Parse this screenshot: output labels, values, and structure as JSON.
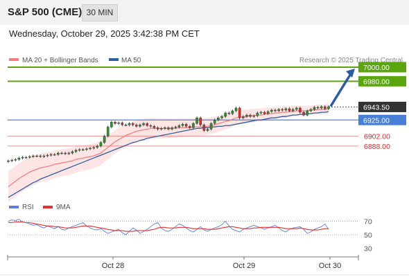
{
  "header": {
    "title": "S&P 500 (CME)",
    "timeframe_label": "30 MIN"
  },
  "datetime": "Wednesday, October 29, 2025 3:42:38 PM CET",
  "legend": {
    "items": [
      {
        "label": "MA 20 + Bollinger Bands",
        "color": "#f08080"
      },
      {
        "label": "MA 50",
        "color": "#2c5ea0"
      }
    ],
    "attribution": "Research © 2025 Trading Central"
  },
  "rsi_legend": {
    "items": [
      {
        "label": "RSI",
        "color": "#5b7fd6"
      },
      {
        "label": "9MA",
        "color": "#e53030"
      }
    ]
  },
  "colors": {
    "resistance": "#5ba50f",
    "support_mid": "#4a7fd6",
    "support": "#e06666",
    "up_candle": "#2f8f2f",
    "down_candle": "#d03030",
    "arrow": "#2e5aa3",
    "bollinger_fill": "#fde2e2"
  },
  "chart_data": [
    {
      "type": "candlestick",
      "title": "S&P 500 (CME)",
      "ylim": [
        6820,
        7000
      ],
      "x_ticks": [
        "Oct 28",
        "Oct 29",
        "Oct 30"
      ],
      "last_price": 6943.5,
      "levels": [
        {
          "value": 7000.0,
          "label": "7000.00",
          "kind": "resistance"
        },
        {
          "value": 6980.0,
          "label": "6980.00",
          "kind": "resistance"
        },
        {
          "value": 6925.0,
          "label": "6925.00",
          "kind": "support-mid"
        },
        {
          "value": 6902.0,
          "label": "6902.00",
          "kind": "support"
        },
        {
          "value": 6888.0,
          "label": "6888.00",
          "kind": "support"
        }
      ],
      "forecast_arrow": {
        "from": 6943.5,
        "to": 7000.0
      },
      "closes": [
        6867,
        6868,
        6869,
        6871,
        6872,
        6872,
        6873,
        6874,
        6874,
        6873,
        6874,
        6875,
        6876,
        6876,
        6878,
        6878,
        6877,
        6878,
        6880,
        6882,
        6883,
        6883,
        6884,
        6885,
        6886,
        6888,
        6893,
        6902,
        6915,
        6922,
        6920,
        6921,
        6918,
        6918,
        6920,
        6918,
        6916,
        6918,
        6920,
        6917,
        6916,
        6914,
        6912,
        6913,
        6914,
        6912,
        6914,
        6915,
        6917,
        6919,
        6916,
        6914,
        6920,
        6928,
        6918,
        6910,
        6912,
        6920,
        6925,
        6928,
        6930,
        6935,
        6934,
        6938,
        6942,
        6928,
        6930,
        6932,
        6930,
        6931,
        6935,
        6936,
        6934,
        6937,
        6939,
        6938,
        6940,
        6939,
        6941,
        6938,
        6940,
        6942,
        6936,
        6932,
        6938,
        6940,
        6943,
        6942,
        6944,
        6941,
        6944
      ],
      "ma20": [
        6830,
        6834,
        6838,
        6842,
        6845,
        6848,
        6851,
        6853,
        6855,
        6857,
        6858,
        6859,
        6860,
        6862,
        6863,
        6864,
        6865,
        6866,
        6867,
        6869,
        6870,
        6871,
        6872,
        6873,
        6874,
        6876,
        6878,
        6882,
        6886,
        6890,
        6894,
        6897,
        6900,
        6903,
        6905,
        6907,
        6909,
        6910,
        6911,
        6912,
        6913,
        6913,
        6913,
        6913,
        6913,
        6913,
        6913,
        6913,
        6914,
        6914,
        6914,
        6914,
        6915,
        6915,
        6915,
        6915,
        6916,
        6917,
        6918,
        6920,
        6921,
        6923,
        6924,
        6926,
        6928,
        6929,
        6929,
        6930,
        6931,
        6931,
        6932,
        6932,
        6933,
        6934,
        6934,
        6935,
        6935,
        6936,
        6936,
        6937,
        6937,
        6938,
        6938,
        6938,
        6938,
        6939,
        6939,
        6940,
        6940,
        6940,
        6941
      ],
      "ma50": [
        6815,
        6818,
        6821,
        6824,
        6827,
        6830,
        6833,
        6836,
        6838,
        6841,
        6843,
        6845,
        6847,
        6849,
        6851,
        6853,
        6855,
        6857,
        6859,
        6861,
        6863,
        6865,
        6867,
        6869,
        6871,
        6873,
        6875,
        6877,
        6879,
        6881,
        6883,
        6885,
        6887,
        6889,
        6891,
        6893,
        6894,
        6896,
        6897,
        6899,
        6900,
        6901,
        6902,
        6903,
        6904,
        6905,
        6906,
        6907,
        6908,
        6909,
        6910,
        6911,
        6912,
        6913,
        6913,
        6914,
        6914,
        6915,
        6915,
        6916,
        6916,
        6917,
        6917,
        6918,
        6919,
        6920,
        6921,
        6922,
        6923,
        6924,
        6925,
        6925,
        6926,
        6927,
        6928,
        6928,
        6929,
        6930,
        6930,
        6931,
        6932,
        6932,
        6933,
        6933,
        6934,
        6934,
        6935,
        6935,
        6936,
        6936,
        6937
      ]
    },
    {
      "type": "line",
      "title": "RSI",
      "ylim": [
        20,
        85
      ],
      "y_ticks": [
        70,
        50,
        30
      ],
      "series": [
        {
          "name": "RSI",
          "values": [
            70,
            72,
            71,
            73,
            69,
            68,
            66,
            64,
            65,
            62,
            60,
            63,
            61,
            59,
            62,
            58,
            57,
            60,
            62,
            64,
            66,
            68,
            63,
            60,
            58,
            57,
            59,
            55,
            52,
            54,
            56,
            58,
            53,
            50,
            55,
            60,
            57,
            52,
            55,
            58,
            62,
            66,
            68,
            60,
            56,
            55,
            58,
            62,
            66,
            64,
            60,
            56,
            54,
            58,
            62,
            57,
            55,
            58,
            60,
            62,
            65,
            70,
            63,
            58,
            56,
            54,
            58,
            60,
            62,
            64,
            62,
            60,
            58,
            60,
            62,
            64,
            60,
            56,
            54,
            58,
            60,
            61,
            62,
            58,
            52,
            54,
            58,
            60,
            62,
            66,
            58
          ]
        },
        {
          "name": "9MA",
          "values": [
            68,
            68,
            69,
            69,
            69,
            68,
            68,
            67,
            66,
            65,
            64,
            63,
            63,
            62,
            62,
            61,
            60,
            60,
            60,
            61,
            62,
            63,
            63,
            63,
            62,
            61,
            60,
            59,
            58,
            57,
            56,
            56,
            56,
            55,
            55,
            55,
            56,
            56,
            56,
            56,
            57,
            58,
            60,
            61,
            61,
            60,
            60,
            60,
            61,
            61,
            61,
            60,
            59,
            59,
            59,
            59,
            58,
            58,
            58,
            59,
            60,
            61,
            62,
            62,
            61,
            60,
            59,
            59,
            59,
            60,
            60,
            61,
            61,
            61,
            61,
            61,
            61,
            60,
            59,
            59,
            59,
            59,
            60,
            59,
            58,
            57,
            57,
            57,
            58,
            59,
            59
          ]
        }
      ]
    }
  ]
}
